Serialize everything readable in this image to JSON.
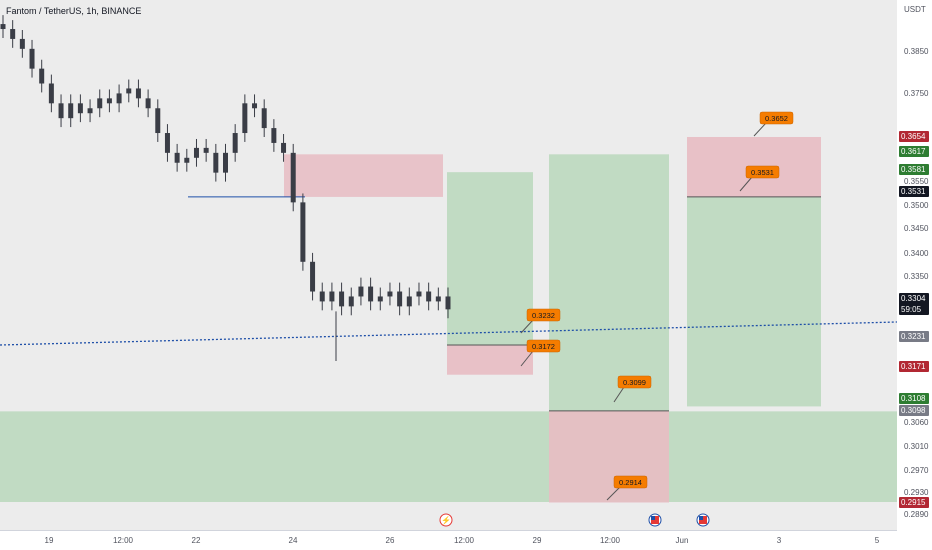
{
  "header": {
    "title": "Fantom / TetherUS, 1h, BINANCE",
    "currency": "USDT"
  },
  "colors": {
    "background": "#ececec",
    "candle": "#3a3d46",
    "stop_zone": "#e8bcc3",
    "target_zone": "#bcd9bf",
    "label_orange": "#f57c00",
    "price_line": "#1e4fa8",
    "badge_red": "#b22833",
    "badge_green": "#2e7d32",
    "badge_gray": "#787b86",
    "badge_black": "#131722"
  },
  "axes": {
    "y_ticks": [
      "0.3850",
      "0.3750",
      "0.3550",
      "0.3500",
      "0.3450",
      "0.3400",
      "0.3350",
      "0.3060",
      "0.3010",
      "0.2970",
      "0.2930",
      "0.2890"
    ],
    "x_ticks": [
      "19",
      "12:00",
      "22",
      "24",
      "26",
      "12:00",
      "29",
      "12:00",
      "Jun",
      "3",
      "5"
    ]
  },
  "price_badges": [
    {
      "text": "0.3654",
      "kind": "red"
    },
    {
      "text": "0.3617",
      "kind": "green"
    },
    {
      "text": "0.3581",
      "kind": "green"
    },
    {
      "text": "0.3531",
      "kind": "black"
    },
    {
      "text": "0.3304",
      "sub": "59:05",
      "kind": "black"
    },
    {
      "text": "0.3231",
      "kind": "gray"
    },
    {
      "text": "0.3171",
      "kind": "red"
    },
    {
      "text": "0.3108",
      "kind": "green"
    },
    {
      "text": "0.3098",
      "kind": "gray"
    },
    {
      "text": "0.2915",
      "kind": "red"
    }
  ],
  "annotations": [
    {
      "text": "0.3232"
    },
    {
      "text": "0.3172"
    },
    {
      "text": "0.3099"
    },
    {
      "text": "0.2914"
    },
    {
      "text": "0.3652"
    },
    {
      "text": "0.3531"
    }
  ],
  "event_icons": [
    {
      "icon": "lightning-icon"
    },
    {
      "icon": "us-flag-icon"
    },
    {
      "icon": "us-flag-icon"
    }
  ],
  "chart_data": {
    "type": "candlestick",
    "symbol": "Fantom / TetherUS",
    "interval": "1h",
    "exchange": "BINANCE",
    "ylim": [
      0.287,
      0.391
    ],
    "current_price": 0.3304,
    "countdown": "59:05",
    "candles_approx_close": [
      0.387,
      0.385,
      0.383,
      0.379,
      0.376,
      0.372,
      0.369,
      0.372,
      0.37,
      0.371,
      0.373,
      0.372,
      0.374,
      0.375,
      0.373,
      0.371,
      0.366,
      0.362,
      0.36,
      0.361,
      0.363,
      0.362,
      0.358,
      0.362,
      0.366,
      0.372,
      0.371,
      0.367,
      0.364,
      0.362,
      0.352,
      0.34,
      0.334,
      0.332,
      0.334,
      0.331,
      0.333,
      0.335,
      0.332,
      0.333,
      0.334,
      0.331,
      0.333,
      0.334,
      0.332,
      0.333,
      0.3304
    ],
    "levels": [
      {
        "name": "support line",
        "value": 0.3531
      },
      {
        "name": "dotted trendline",
        "value": 0.3231
      }
    ],
    "zones": [
      {
        "kind": "stop",
        "top": 0.3617,
        "bottom": 0.3531
      },
      {
        "kind": "target",
        "top": 0.3098,
        "bottom": 0.2915
      },
      {
        "kind": "long-position",
        "entry": 0.3232,
        "stop": 0.3172,
        "target": 0.3581
      },
      {
        "kind": "long-position",
        "entry": 0.3099,
        "stop": 0.2914,
        "target": 0.3617
      },
      {
        "kind": "short-position",
        "entry": 0.3531,
        "stop": 0.3652,
        "target": 0.3108
      }
    ]
  }
}
